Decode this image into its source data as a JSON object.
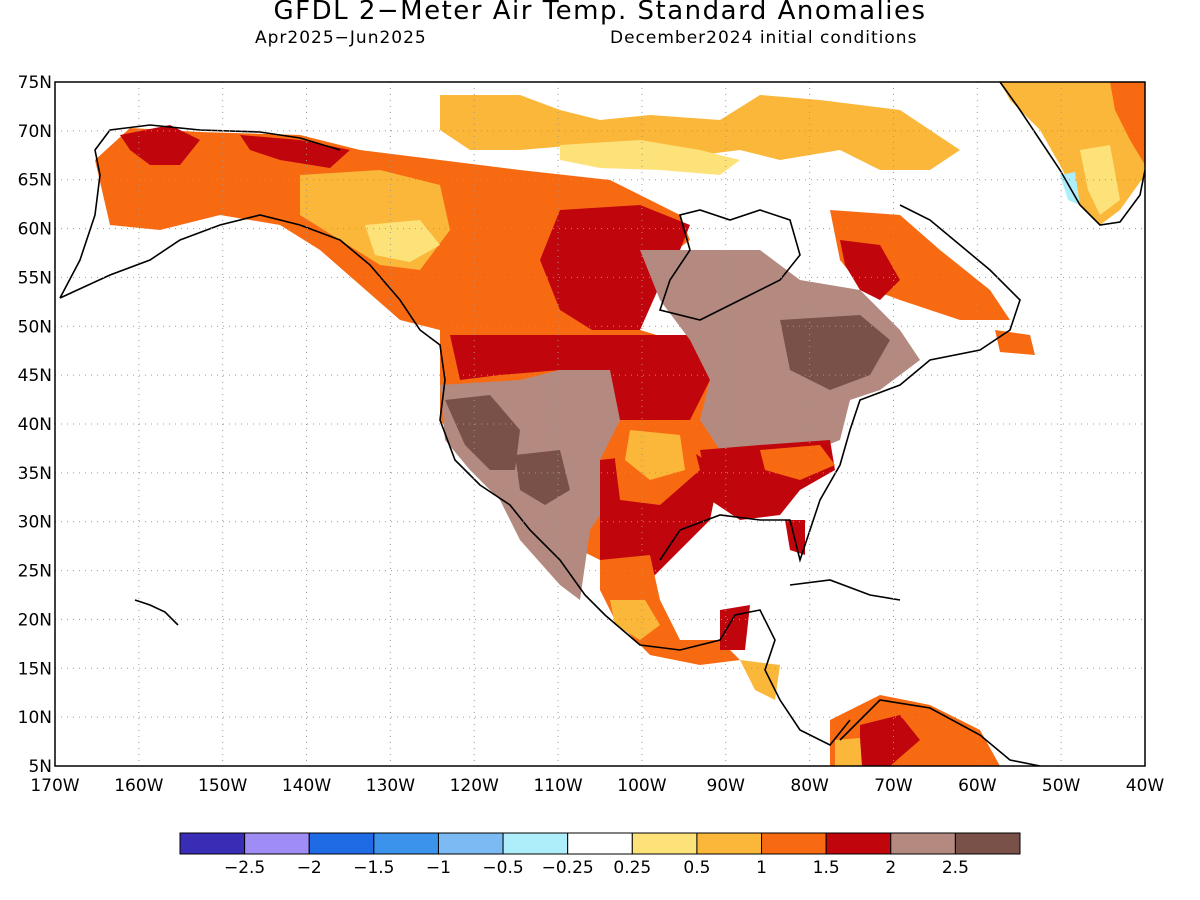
{
  "title": "GFDL 2−Meter Air Temp. Standard Anomalies",
  "subtitle_left": "Apr2025−Jun2025",
  "subtitle_right": "December2024 initial conditions",
  "map": {
    "lat_labels": [
      "75N",
      "70N",
      "65N",
      "60N",
      "55N",
      "50N",
      "45N",
      "40N",
      "35N",
      "30N",
      "25N",
      "20N",
      "15N",
      "10N",
      "5N"
    ],
    "lon_labels": [
      "170W",
      "160W",
      "150W",
      "140W",
      "130W",
      "120W",
      "110W",
      "100W",
      "90W",
      "80W",
      "70W",
      "60W",
      "50W",
      "40W"
    ]
  },
  "colorbar": {
    "colors": [
      "#3a2db5",
      "#a08cf5",
      "#1f6be6",
      "#3c93ec",
      "#7cbaf4",
      "#aeeefa",
      "#ffffff",
      "#fde27a",
      "#fbb73a",
      "#f86a12",
      "#c0050c",
      "#b48a80",
      "#7a5148"
    ],
    "labels": [
      "−2.5",
      "−2",
      "−1.5",
      "−1",
      "−0.5",
      "−0.25",
      "0.25",
      "0.5",
      "1",
      "1.5",
      "2",
      "2.5"
    ]
  },
  "colors": {
    "hot2": "#c0050c",
    "hot15": "#f86a12",
    "hot1": "#fbb73a",
    "warm05": "#fde27a",
    "brown1": "#b48a80",
    "brown2": "#7a5148",
    "cool": "#aeeefa"
  }
}
